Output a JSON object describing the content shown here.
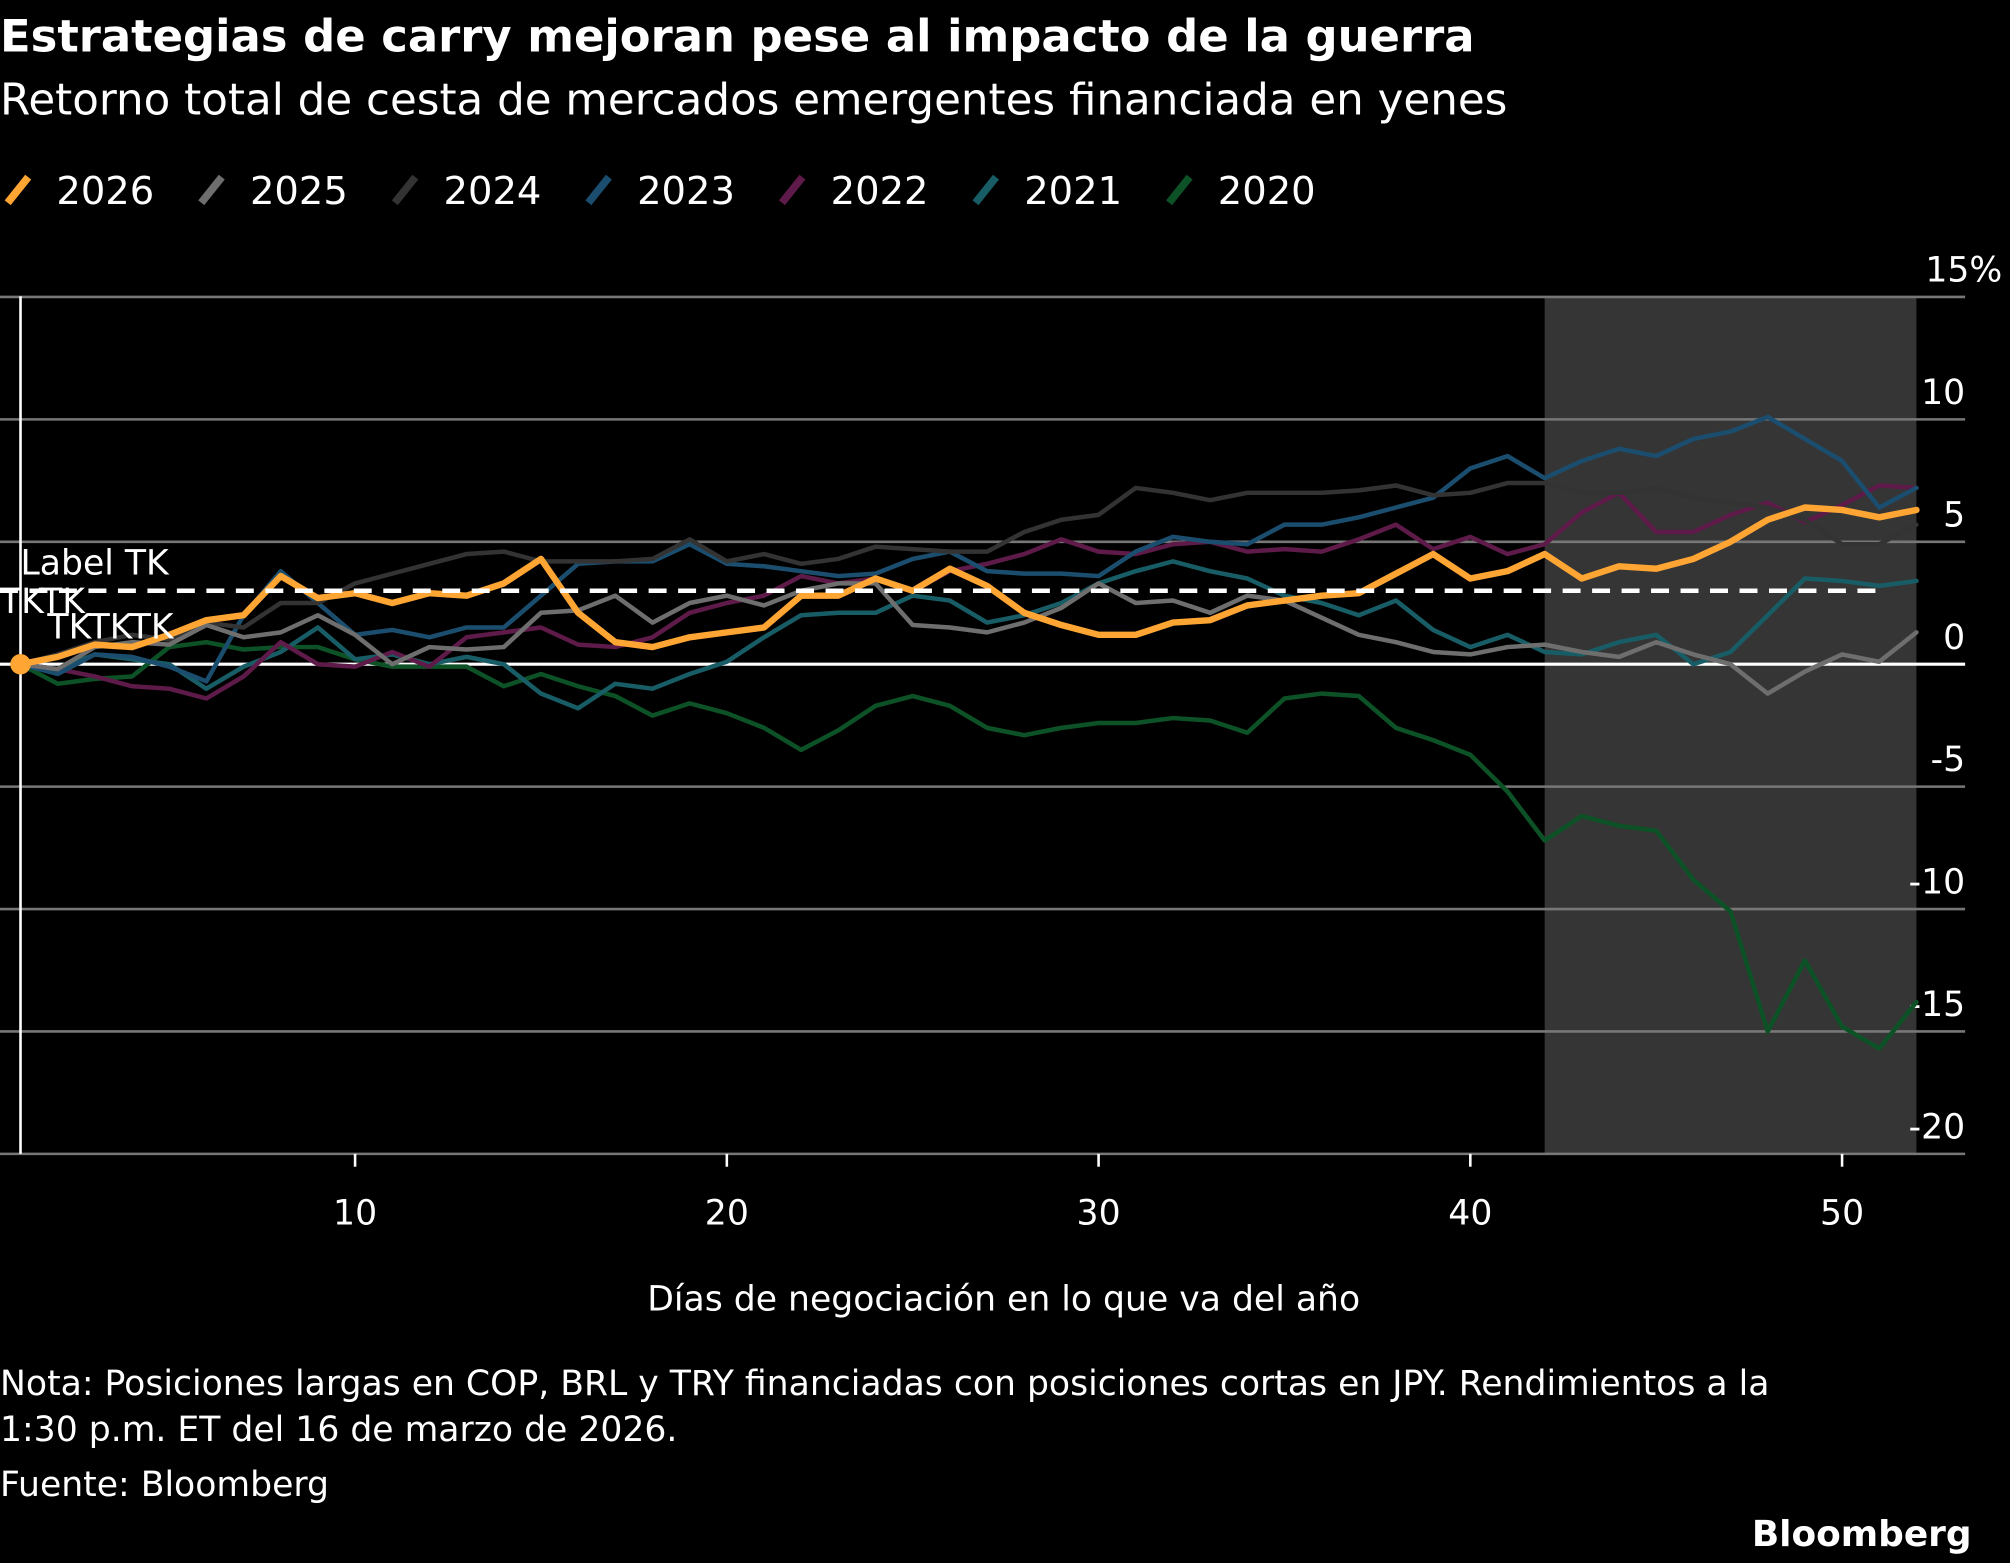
{
  "chart_data": {
    "type": "line",
    "title": "Estrategias de carry mejoran pese al impacto de la guerra",
    "subtitle": "Retorno total de cesta de mercados emergentes financiada en yenes",
    "xlabel": "Días de negociación en lo que va del año",
    "ylabel": "",
    "y_unit": "%",
    "xlim": [
      1,
      52
    ],
    "ylim": [
      -20,
      15
    ],
    "x_ticks": [
      10,
      20,
      30,
      40,
      50
    ],
    "y_ticks": [
      15,
      10,
      5,
      0,
      -5,
      -10,
      -15,
      -20
    ],
    "y_tick_labels": [
      "15%",
      "10",
      "5",
      "0",
      "-5",
      "-10",
      "-15",
      "-20"
    ],
    "y_axis_side": "right",
    "grid": true,
    "legend_position": "top-left",
    "shaded_region": {
      "x_from": 42,
      "x_to": 52,
      "color": "#353535"
    },
    "reference_line": {
      "y": 3.0,
      "style": "dashed",
      "color": "#ffffff"
    },
    "annotations": [
      "Label TK",
      "TKTK",
      "TKTKTK"
    ],
    "x": [
      1,
      2,
      3,
      4,
      5,
      6,
      7,
      8,
      9,
      10,
      11,
      12,
      13,
      14,
      15,
      16,
      17,
      18,
      19,
      20,
      21,
      22,
      23,
      24,
      25,
      26,
      27,
      28,
      29,
      30,
      31,
      32,
      33,
      34,
      35,
      36,
      37,
      38,
      39,
      40,
      41,
      42,
      43,
      44,
      45,
      46,
      47,
      48,
      49,
      50,
      51,
      52
    ],
    "series": [
      {
        "name": "2020",
        "color": "#0d5226",
        "values": [
          0,
          -0.8,
          -0.6,
          -0.5,
          0.7,
          0.9,
          0.6,
          0.7,
          0.7,
          0.2,
          -0.1,
          -0.1,
          -0.1,
          -0.9,
          -0.4,
          -0.9,
          -1.3,
          -2.1,
          -1.6,
          -2.0,
          -2.6,
          -3.5,
          -2.7,
          -1.7,
          -1.3,
          -1.7,
          -2.6,
          -2.9,
          -2.6,
          -2.4,
          -2.4,
          -2.2,
          -2.3,
          -2.8,
          -1.4,
          -1.2,
          -1.3,
          -2.6,
          -3.1,
          -3.7,
          -5.2,
          -7.2,
          -6.2,
          -6.6,
          -6.8,
          -8.8,
          -10.1,
          -15.0,
          -12.1,
          -14.8,
          -15.7,
          -13.8
        ]
      },
      {
        "name": "2021",
        "color": "#185d66",
        "values": [
          0,
          -0.2,
          0.4,
          0.2,
          0,
          -1.0,
          -0.1,
          0.5,
          1.5,
          0.2,
          0.4,
          0,
          0.3,
          0,
          -1.2,
          -1.8,
          -0.8,
          -1.0,
          -0.4,
          0.1,
          1.1,
          2.0,
          2.1,
          2.1,
          2.8,
          2.6,
          1.7,
          2.0,
          2.5,
          3.3,
          3.8,
          4.2,
          3.8,
          3.5,
          2.8,
          2.5,
          2.0,
          2.6,
          1.4,
          0.7,
          1.2,
          0.5,
          0.4,
          0.9,
          1.2,
          0,
          0.5,
          2.0,
          3.5,
          3.4,
          3.2,
          3.4
        ]
      },
      {
        "name": "2022",
        "color": "#5e1a48",
        "values": [
          0,
          -0.2,
          -0.5,
          -0.9,
          -1.0,
          -1.4,
          -0.5,
          0.9,
          0,
          -0.1,
          0.5,
          -0.1,
          1.1,
          1.3,
          1.5,
          0.8,
          0.7,
          1.1,
          2.1,
          2.5,
          2.8,
          3.6,
          3.3,
          3.5,
          3.0,
          3.8,
          4.1,
          4.5,
          5.1,
          4.6,
          4.5,
          4.9,
          5.0,
          4.6,
          4.7,
          4.6,
          5.1,
          5.7,
          4.7,
          5.2,
          4.5,
          4.9,
          6.2,
          7.0,
          5.4,
          5.4,
          6.1,
          6.6,
          5.8,
          6.5,
          7.3,
          7.2
        ]
      },
      {
        "name": "2023",
        "color": "#1b4e6e",
        "values": [
          0,
          -0.4,
          0.4,
          0.3,
          -0.1,
          -0.7,
          2.0,
          3.8,
          2.5,
          1.2,
          1.4,
          1.1,
          1.5,
          1.5,
          2.8,
          4.1,
          4.2,
          4.2,
          4.9,
          4.1,
          4.0,
          3.8,
          3.6,
          3.7,
          4.3,
          4.6,
          3.8,
          3.7,
          3.7,
          3.6,
          4.6,
          5.2,
          5.0,
          4.9,
          5.7,
          5.7,
          6.0,
          6.4,
          6.8,
          8.0,
          8.5,
          7.6,
          8.3,
          8.8,
          8.5,
          9.2,
          9.5,
          10.1,
          9.2,
          8.3,
          6.4,
          7.2
        ]
      },
      {
        "name": "2024",
        "color": "#333333",
        "values": [
          0,
          0.4,
          0.9,
          1.2,
          1.0,
          1.7,
          1.5,
          2.5,
          2.5,
          3.3,
          3.7,
          4.1,
          4.5,
          4.6,
          4.2,
          4.2,
          4.2,
          4.3,
          5.1,
          4.2,
          4.5,
          4.1,
          4.3,
          4.8,
          4.7,
          4.6,
          4.6,
          5.4,
          5.9,
          6.1,
          7.2,
          7.0,
          6.7,
          7.0,
          7.0,
          7.0,
          7.1,
          7.3,
          6.9,
          7.0,
          7.4,
          7.4,
          7.0,
          7.0,
          7.2,
          6.8,
          6.6,
          6.4,
          5.9,
          4.9,
          4.9,
          5.7
        ]
      },
      {
        "name": "2025",
        "color": "#6e6e6e",
        "values": [
          0,
          -0.2,
          0.7,
          0.9,
          0.8,
          1.6,
          1.1,
          1.3,
          2.0,
          1.2,
          0,
          0.7,
          0.6,
          0.7,
          2.1,
          2.2,
          2.8,
          1.7,
          2.5,
          2.8,
          2.4,
          3.0,
          3.3,
          3.3,
          1.6,
          1.5,
          1.3,
          1.7,
          2.3,
          3.3,
          2.5,
          2.6,
          2.1,
          2.8,
          2.6,
          1.9,
          1.2,
          0.9,
          0.5,
          0.4,
          0.7,
          0.8,
          0.5,
          0.3,
          0.9,
          0.4,
          0,
          -1.2,
          -0.3,
          0.4,
          0.1,
          1.3
        ]
      },
      {
        "name": "2026",
        "color": "#ffa533",
        "values": [
          0,
          0.3,
          0.8,
          0.7,
          1.2,
          1.8,
          2.0,
          3.6,
          2.7,
          2.9,
          2.5,
          2.9,
          2.8,
          3.3,
          4.3,
          2.1,
          0.9,
          0.7,
          1.1,
          1.3,
          1.5,
          2.8,
          2.8,
          3.5,
          3.0,
          3.9,
          3.2,
          2.1,
          1.6,
          1.2,
          1.2,
          1.7,
          1.8,
          2.4,
          2.6,
          2.8,
          2.9,
          3.7,
          4.5,
          3.5,
          3.8,
          4.5,
          3.5,
          4.0,
          3.9,
          4.3,
          5.0,
          5.9,
          6.4,
          6.3,
          6.0,
          6.3
        ]
      }
    ],
    "legend_order": [
      "2026",
      "2025",
      "2024",
      "2023",
      "2022",
      "2021",
      "2020"
    ]
  },
  "footer": {
    "note_line1": "Nota: Posiciones largas en COP, BRL y TRY financiadas con posiciones cortas en JPY. Rendimientos a la",
    "note_line2": "1:30 p.m. ET del 16 de marzo de 2026.",
    "source": "Fuente: Bloomberg",
    "logo": "Bloomberg"
  }
}
